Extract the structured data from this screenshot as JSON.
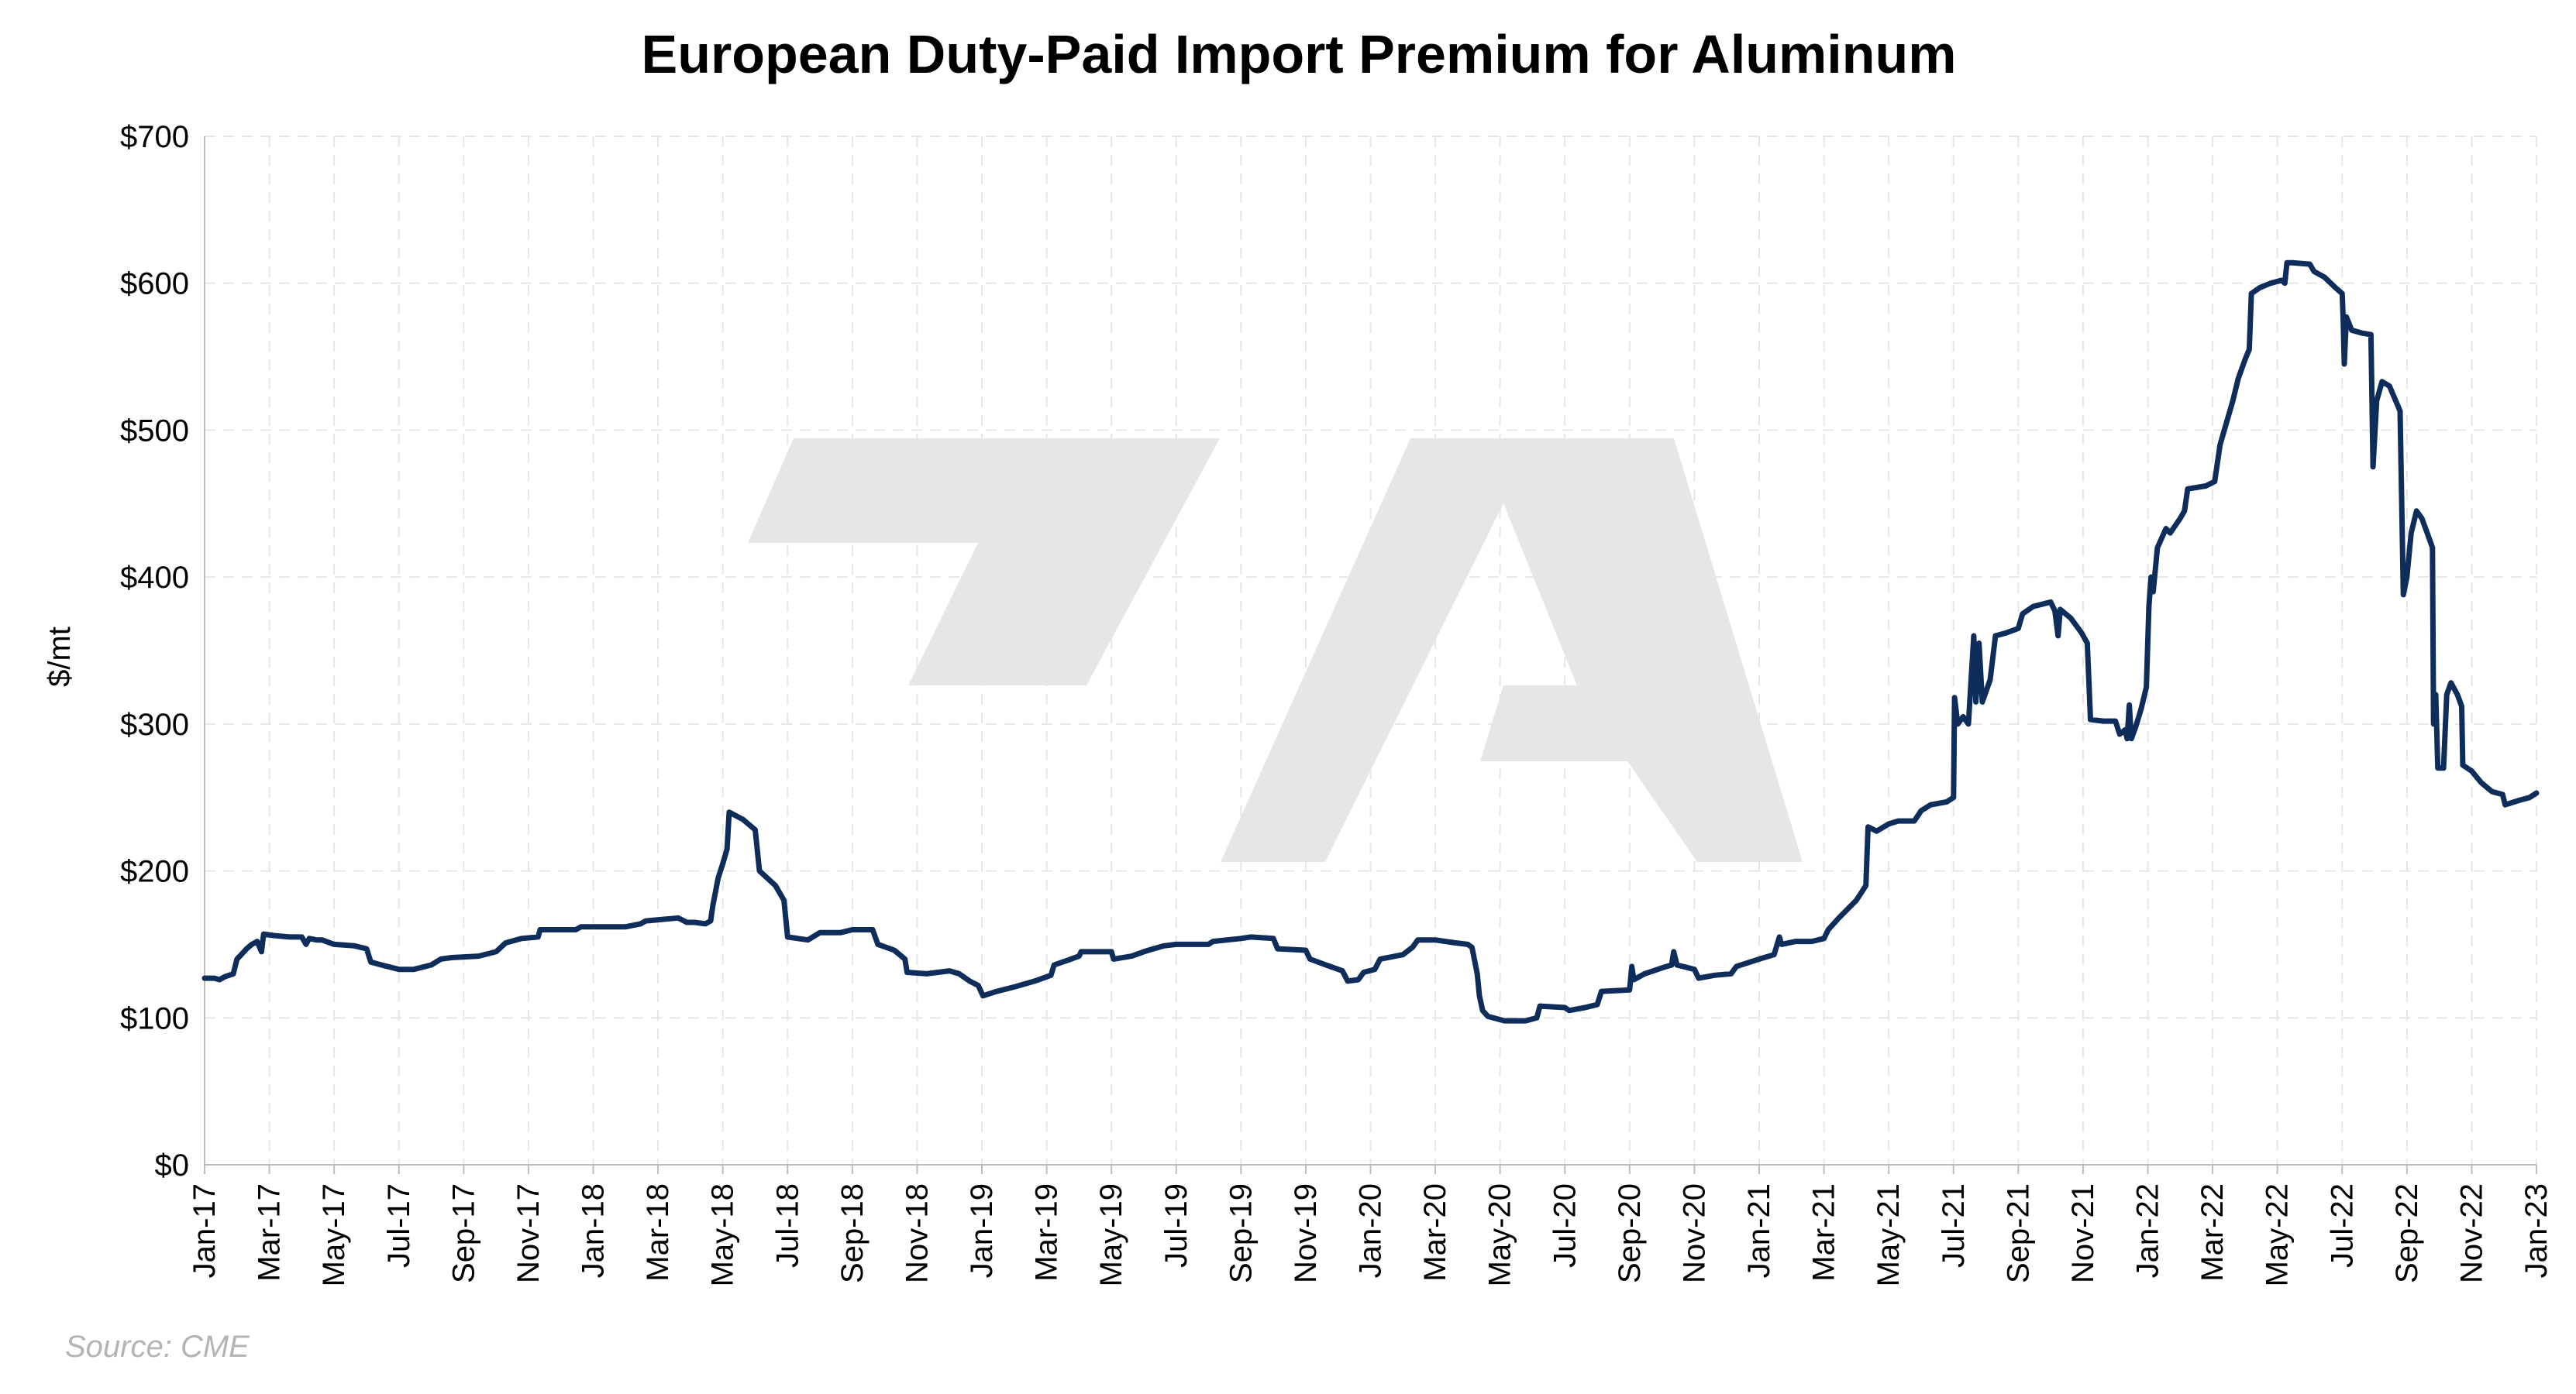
{
  "chart_data": {
    "type": "line",
    "title": "European Duty-Paid Import Premium for Aluminum",
    "xlabel": "",
    "ylabel": "$/mt",
    "source": "Source: CME",
    "ylim": [
      0,
      700
    ],
    "xlim": [
      "2017-01",
      "2023-01"
    ],
    "y_ticks": [
      0,
      100,
      200,
      300,
      400,
      500,
      600,
      700
    ],
    "y_tick_labels": [
      "$0",
      "$100",
      "$200",
      "$300",
      "$400",
      "$500",
      "$600",
      "$700"
    ],
    "x_tick_labels": [
      "Jan-17",
      "Mar-17",
      "May-17",
      "Jul-17",
      "Sep-17",
      "Nov-17",
      "Jan-18",
      "Mar-18",
      "May-18",
      "Jul-18",
      "Sep-18",
      "Nov-18",
      "Jan-19",
      "Mar-19",
      "May-19",
      "Jul-19",
      "Sep-19",
      "Nov-19",
      "Jan-20",
      "Mar-20",
      "May-20",
      "Jul-20",
      "Sep-20",
      "Nov-20",
      "Jan-21",
      "Mar-21",
      "May-21",
      "Jul-21",
      "Sep-21",
      "Nov-21",
      "Jan-22",
      "Mar-22",
      "May-22",
      "Jul-22",
      "Sep-22",
      "Nov-22",
      "Jan-23"
    ],
    "grid": true,
    "line_color": "#0f2d5a",
    "watermark_color": "#e6e6e6",
    "series": [
      {
        "points": [
          [
            "2017-01-01",
            127
          ],
          [
            "2017-01-10",
            127
          ],
          [
            "2017-01-15",
            126
          ],
          [
            "2017-01-20",
            128
          ],
          [
            "2017-01-28",
            130
          ],
          [
            "2017-02-01",
            140
          ],
          [
            "2017-02-05",
            143
          ],
          [
            "2017-02-10",
            147
          ],
          [
            "2017-02-15",
            150
          ],
          [
            "2017-02-20",
            152
          ],
          [
            "2017-02-24",
            145
          ],
          [
            "2017-02-26",
            157
          ],
          [
            "2017-03-05",
            156
          ],
          [
            "2017-03-20",
            155
          ],
          [
            "2017-04-01",
            155
          ],
          [
            "2017-04-05",
            150
          ],
          [
            "2017-04-08",
            154
          ],
          [
            "2017-04-15",
            153
          ],
          [
            "2017-04-20",
            153
          ],
          [
            "2017-05-01",
            150
          ],
          [
            "2017-05-20",
            149
          ],
          [
            "2017-06-01",
            147
          ],
          [
            "2017-06-05",
            138
          ],
          [
            "2017-06-15",
            136
          ],
          [
            "2017-07-01",
            133
          ],
          [
            "2017-07-15",
            133
          ],
          [
            "2017-08-01",
            136
          ],
          [
            "2017-08-10",
            140
          ],
          [
            "2017-08-20",
            141
          ],
          [
            "2017-09-15",
            142
          ],
          [
            "2017-10-01",
            145
          ],
          [
            "2017-10-10",
            151
          ],
          [
            "2017-10-25",
            154
          ],
          [
            "2017-11-10",
            155
          ],
          [
            "2017-11-12",
            160
          ],
          [
            "2017-12-15",
            160
          ],
          [
            "2017-12-20",
            162
          ],
          [
            "2018-02-01",
            162
          ],
          [
            "2018-02-15",
            164
          ],
          [
            "2018-02-20",
            166
          ],
          [
            "2018-03-20",
            168
          ],
          [
            "2018-03-28",
            165
          ],
          [
            "2018-04-05",
            165
          ],
          [
            "2018-04-15",
            164
          ],
          [
            "2018-04-20",
            166
          ],
          [
            "2018-04-22",
            176
          ],
          [
            "2018-04-27",
            195
          ],
          [
            "2018-05-01",
            205
          ],
          [
            "2018-05-05",
            215
          ],
          [
            "2018-05-07",
            240
          ],
          [
            "2018-05-20",
            235
          ],
          [
            "2018-06-01",
            228
          ],
          [
            "2018-06-05",
            200
          ],
          [
            "2018-06-20",
            190
          ],
          [
            "2018-06-28",
            180
          ],
          [
            "2018-07-01",
            155
          ],
          [
            "2018-07-20",
            153
          ],
          [
            "2018-08-01",
            158
          ],
          [
            "2018-08-20",
            158
          ],
          [
            "2018-09-01",
            160
          ],
          [
            "2018-09-20",
            160
          ],
          [
            "2018-09-25",
            150
          ],
          [
            "2018-10-10",
            146
          ],
          [
            "2018-10-20",
            140
          ],
          [
            "2018-10-22",
            131
          ],
          [
            "2018-11-10",
            130
          ],
          [
            "2018-12-01",
            132
          ],
          [
            "2018-12-10",
            130
          ],
          [
            "2018-12-20",
            125
          ],
          [
            "2018-12-28",
            122
          ],
          [
            "2019-01-02",
            115
          ],
          [
            "2019-01-15",
            118
          ],
          [
            "2019-02-01",
            121
          ],
          [
            "2019-02-20",
            125
          ],
          [
            "2019-03-05",
            129
          ],
          [
            "2019-03-08",
            136
          ],
          [
            "2019-03-20",
            139
          ],
          [
            "2019-04-01",
            142
          ],
          [
            "2019-04-03",
            145
          ],
          [
            "2019-05-01",
            145
          ],
          [
            "2019-05-03",
            140
          ],
          [
            "2019-05-20",
            142
          ],
          [
            "2019-06-01",
            145
          ],
          [
            "2019-06-10",
            147
          ],
          [
            "2019-06-20",
            149
          ],
          [
            "2019-07-01",
            150
          ],
          [
            "2019-08-01",
            150
          ],
          [
            "2019-08-05",
            152
          ],
          [
            "2019-09-01",
            154
          ],
          [
            "2019-09-10",
            155
          ],
          [
            "2019-10-01",
            154
          ],
          [
            "2019-10-05",
            147
          ],
          [
            "2019-11-01",
            146
          ],
          [
            "2019-11-05",
            140
          ],
          [
            "2019-11-20",
            136
          ],
          [
            "2019-12-05",
            132
          ],
          [
            "2019-12-10",
            125
          ],
          [
            "2019-12-20",
            126
          ],
          [
            "2019-12-25",
            131
          ],
          [
            "2020-01-05",
            133
          ],
          [
            "2020-01-10",
            140
          ],
          [
            "2020-02-01",
            143
          ],
          [
            "2020-02-10",
            148
          ],
          [
            "2020-02-15",
            153
          ],
          [
            "2020-03-01",
            153
          ],
          [
            "2020-03-20",
            151
          ],
          [
            "2020-04-01",
            150
          ],
          [
            "2020-04-05",
            148
          ],
          [
            "2020-04-10",
            130
          ],
          [
            "2020-04-12",
            115
          ],
          [
            "2020-04-15",
            105
          ],
          [
            "2020-04-20",
            101
          ],
          [
            "2020-05-05",
            98
          ],
          [
            "2020-05-25",
            98
          ],
          [
            "2020-06-05",
            100
          ],
          [
            "2020-06-08",
            108
          ],
          [
            "2020-07-01",
            107
          ],
          [
            "2020-07-05",
            105
          ],
          [
            "2020-07-20",
            107
          ],
          [
            "2020-08-01",
            109
          ],
          [
            "2020-08-05",
            118
          ],
          [
            "2020-09-01",
            119
          ],
          [
            "2020-09-03",
            135
          ],
          [
            "2020-09-05",
            126
          ],
          [
            "2020-09-15",
            130
          ],
          [
            "2020-10-01",
            134
          ],
          [
            "2020-10-10",
            136
          ],
          [
            "2020-10-12",
            145
          ],
          [
            "2020-10-15",
            136
          ],
          [
            "2020-11-01",
            133
          ],
          [
            "2020-11-05",
            127
          ],
          [
            "2020-11-20",
            129
          ],
          [
            "2020-12-05",
            130
          ],
          [
            "2020-12-10",
            135
          ],
          [
            "2021-01-01",
            140
          ],
          [
            "2021-01-15",
            143
          ],
          [
            "2021-01-20",
            155
          ],
          [
            "2021-01-22",
            150
          ],
          [
            "2021-02-05",
            152
          ],
          [
            "2021-02-20",
            152
          ],
          [
            "2021-03-01",
            154
          ],
          [
            "2021-03-05",
            160
          ],
          [
            "2021-03-15",
            168
          ],
          [
            "2021-04-01",
            180
          ],
          [
            "2021-04-10",
            190
          ],
          [
            "2021-04-12",
            230
          ],
          [
            "2021-04-20",
            227
          ],
          [
            "2021-05-01",
            232
          ],
          [
            "2021-05-10",
            234
          ],
          [
            "2021-05-25",
            234
          ],
          [
            "2021-06-01",
            241
          ],
          [
            "2021-06-10",
            245
          ],
          [
            "2021-06-25",
            247
          ],
          [
            "2021-07-01",
            250
          ],
          [
            "2021-07-02",
            318
          ],
          [
            "2021-07-05",
            300
          ],
          [
            "2021-07-10",
            305
          ],
          [
            "2021-07-15",
            300
          ],
          [
            "2021-07-20",
            360
          ],
          [
            "2021-07-22",
            315
          ],
          [
            "2021-07-25",
            355
          ],
          [
            "2021-07-28",
            315
          ],
          [
            "2021-08-05",
            330
          ],
          [
            "2021-08-10",
            360
          ],
          [
            "2021-08-20",
            362
          ],
          [
            "2021-09-01",
            365
          ],
          [
            "2021-09-05",
            375
          ],
          [
            "2021-09-15",
            380
          ],
          [
            "2021-10-01",
            383
          ],
          [
            "2021-10-05",
            377
          ],
          [
            "2021-10-08",
            360
          ],
          [
            "2021-10-10",
            378
          ],
          [
            "2021-10-20",
            372
          ],
          [
            "2021-10-30",
            362
          ],
          [
            "2021-11-05",
            355
          ],
          [
            "2021-11-08",
            303
          ],
          [
            "2021-11-20",
            302
          ],
          [
            "2021-12-01",
            302
          ],
          [
            "2021-12-05",
            293
          ],
          [
            "2021-12-10",
            296
          ],
          [
            "2021-12-12",
            290
          ],
          [
            "2021-12-14",
            313
          ],
          [
            "2021-12-16",
            290
          ],
          [
            "2021-12-20",
            298
          ],
          [
            "2021-12-25",
            310
          ],
          [
            "2021-12-30",
            325
          ],
          [
            "2022-01-02",
            380
          ],
          [
            "2022-01-04",
            400
          ],
          [
            "2022-01-06",
            390
          ],
          [
            "2022-01-10",
            420
          ],
          [
            "2022-01-18",
            433
          ],
          [
            "2022-01-22",
            430
          ],
          [
            "2022-02-01",
            440
          ],
          [
            "2022-02-05",
            445
          ],
          [
            "2022-02-08",
            460
          ],
          [
            "2022-02-25",
            462
          ],
          [
            "2022-03-03",
            465
          ],
          [
            "2022-03-08",
            490
          ],
          [
            "2022-03-12",
            500
          ],
          [
            "2022-03-20",
            520
          ],
          [
            "2022-03-25",
            535
          ],
          [
            "2022-04-01",
            548
          ],
          [
            "2022-04-05",
            555
          ],
          [
            "2022-04-07",
            593
          ],
          [
            "2022-04-15",
            597
          ],
          [
            "2022-04-25",
            600
          ],
          [
            "2022-05-05",
            602
          ],
          [
            "2022-05-08",
            600
          ],
          [
            "2022-05-10",
            614
          ],
          [
            "2022-05-15",
            614
          ],
          [
            "2022-06-01",
            613
          ],
          [
            "2022-06-05",
            608
          ],
          [
            "2022-06-15",
            604
          ],
          [
            "2022-06-25",
            597
          ],
          [
            "2022-07-01",
            593
          ],
          [
            "2022-07-02",
            575
          ],
          [
            "2022-07-03",
            545
          ],
          [
            "2022-07-05",
            577
          ],
          [
            "2022-07-10",
            568
          ],
          [
            "2022-07-20",
            566
          ],
          [
            "2022-07-28",
            565
          ],
          [
            "2022-07-30",
            475
          ],
          [
            "2022-08-03",
            520
          ],
          [
            "2022-08-08",
            533
          ],
          [
            "2022-08-15",
            530
          ],
          [
            "2022-08-25",
            513
          ],
          [
            "2022-08-28",
            388
          ],
          [
            "2022-09-01",
            400
          ],
          [
            "2022-09-05",
            430
          ],
          [
            "2022-09-10",
            445
          ],
          [
            "2022-09-15",
            440
          ],
          [
            "2022-09-20",
            430
          ],
          [
            "2022-09-25",
            420
          ],
          [
            "2022-09-26",
            300
          ],
          [
            "2022-09-28",
            320
          ],
          [
            "2022-09-30",
            270
          ],
          [
            "2022-10-05",
            270
          ],
          [
            "2022-10-08",
            320
          ],
          [
            "2022-10-12",
            328
          ],
          [
            "2022-10-18",
            320
          ],
          [
            "2022-10-22",
            312
          ],
          [
            "2022-10-23",
            272
          ],
          [
            "2022-11-01",
            268
          ],
          [
            "2022-11-10",
            260
          ],
          [
            "2022-11-20",
            254
          ],
          [
            "2022-11-30",
            252
          ],
          [
            "2022-12-02",
            245
          ],
          [
            "2022-12-15",
            248
          ],
          [
            "2022-12-25",
            250
          ],
          [
            "2023-01-01",
            253
          ]
        ]
      }
    ]
  }
}
